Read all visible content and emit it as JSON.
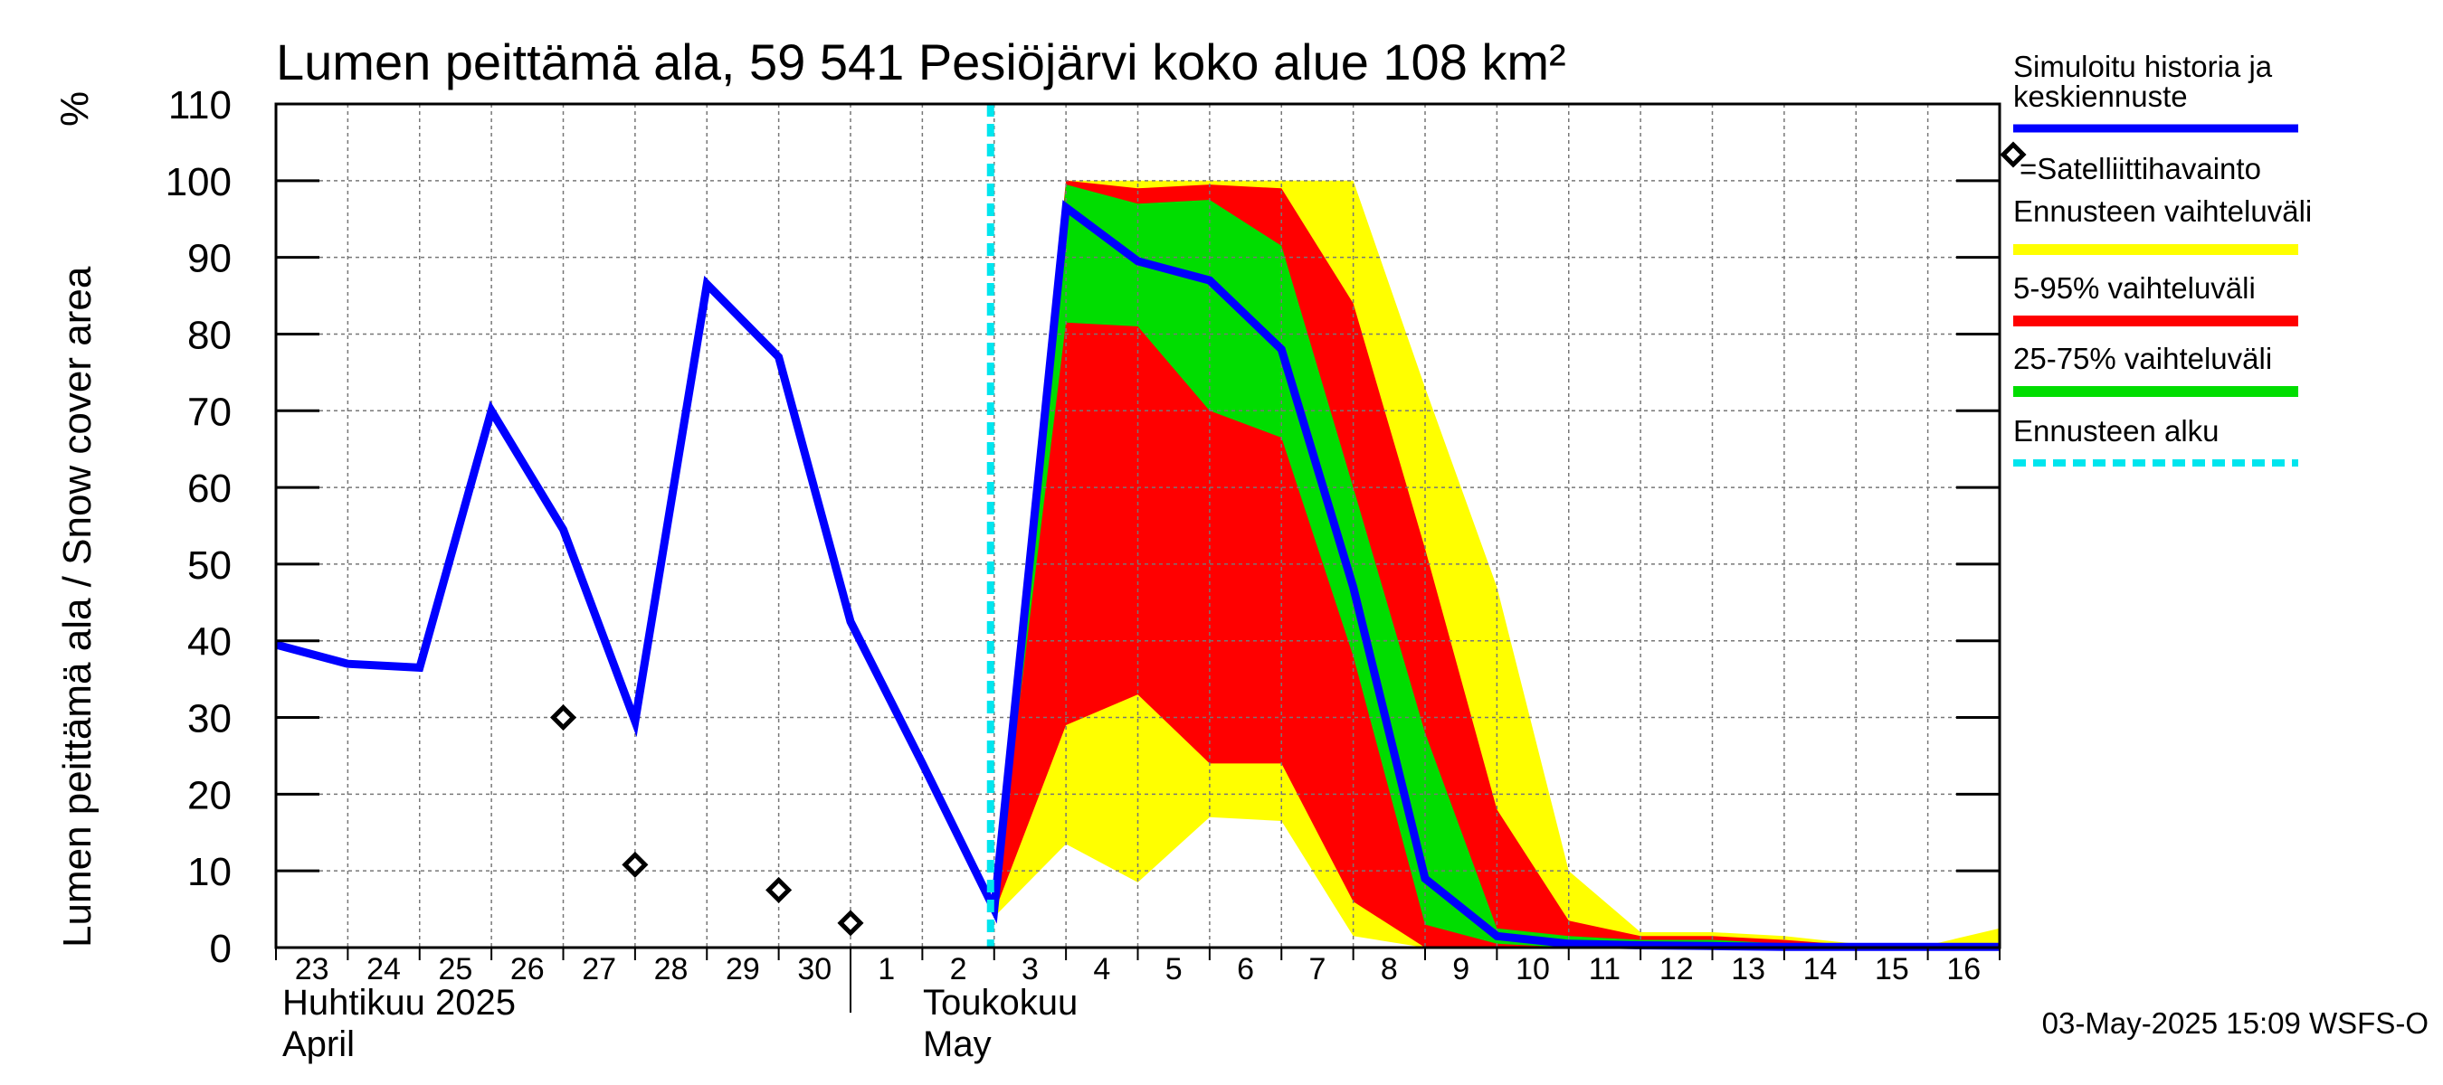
{
  "chart_data": {
    "type": "area",
    "title": "Lumen peittämä ala, 59 541 Pesiöjärvi koko alue 108 km²",
    "ylabel": "Lumen peittämä ala / Snow cover area",
    "yunit": "%",
    "ylim": [
      0,
      110
    ],
    "yticks": [
      0,
      10,
      20,
      30,
      40,
      50,
      60,
      70,
      80,
      90,
      100,
      110
    ],
    "xlim": [
      "2025-04-23",
      "2025-05-17"
    ],
    "x_tick_labels": [
      "23",
      "24",
      "25",
      "26",
      "27",
      "28",
      "29",
      "30",
      "1",
      "2",
      "3",
      "4",
      "5",
      "6",
      "7",
      "8",
      "9",
      "10",
      "11",
      "12",
      "13",
      "14",
      "15",
      "16"
    ],
    "month_labels": [
      {
        "fi": "Huhtikuu  2025",
        "en": "April"
      },
      {
        "fi": "Toukokuu",
        "en": "May"
      }
    ],
    "forecast_start": "2025-05-03",
    "grid": true,
    "legend_position": "right",
    "series": [
      {
        "name": "Simuloitu historia ja keskiennuste",
        "role": "history_and_median",
        "color": "#0000ff",
        "x": [
          "2025-04-23",
          "2025-04-24",
          "2025-04-25",
          "2025-04-26",
          "2025-04-27",
          "2025-04-28",
          "2025-04-29",
          "2025-04-30",
          "2025-05-01",
          "2025-05-02",
          "2025-05-03",
          "2025-05-04",
          "2025-05-05",
          "2025-05-06",
          "2025-05-07",
          "2025-05-08",
          "2025-05-09",
          "2025-05-10",
          "2025-05-11",
          "2025-05-12",
          "2025-05-13",
          "2025-05-14",
          "2025-05-15",
          "2025-05-16",
          "2025-05-17"
        ],
        "y": [
          39.5,
          37,
          36.5,
          70,
          54.5,
          29.5,
          86.5,
          77,
          42.5,
          24,
          5,
          96.5,
          89.5,
          87,
          78,
          47,
          9,
          1.5,
          0.5,
          0.3,
          0.2,
          0.1,
          0.1,
          0.1,
          0.1
        ]
      },
      {
        "name": "=Satelliittihavainto",
        "role": "satellite",
        "color": "#000000",
        "x": [
          "2025-04-27",
          "2025-04-28",
          "2025-04-30",
          "2025-05-01"
        ],
        "y": [
          30,
          10.8,
          7.5,
          3.2
        ]
      },
      {
        "name": "Ennusteen vaihteluväli",
        "role": "band_full",
        "color": "#ffff00",
        "x": [
          "2025-05-03",
          "2025-05-04",
          "2025-05-05",
          "2025-05-06",
          "2025-05-07",
          "2025-05-08",
          "2025-05-09",
          "2025-05-10",
          "2025-05-11",
          "2025-05-12",
          "2025-05-13",
          "2025-05-14",
          "2025-05-15",
          "2025-05-16",
          "2025-05-17"
        ],
        "upper": [
          6,
          100,
          100,
          100,
          100,
          100,
          73,
          47,
          10,
          2,
          2,
          1.5,
          0.5,
          0.3,
          2.5
        ],
        "lower": [
          4,
          13.5,
          8.5,
          17,
          16.5,
          1.5,
          0,
          0,
          0,
          0,
          0,
          0,
          0,
          0,
          0
        ]
      },
      {
        "name": "5-95% vaihteluväli",
        "role": "band_5_95",
        "color": "#ff0000",
        "x": [
          "2025-05-03",
          "2025-05-04",
          "2025-05-05",
          "2025-05-06",
          "2025-05-07",
          "2025-05-08",
          "2025-05-09",
          "2025-05-10",
          "2025-05-11",
          "2025-05-12",
          "2025-05-13",
          "2025-05-14",
          "2025-05-15",
          "2025-05-16",
          "2025-05-17"
        ],
        "upper": [
          6,
          100,
          99,
          99.5,
          99,
          84,
          52,
          18,
          3.5,
          1.5,
          1.5,
          1,
          0.3,
          0.2,
          0.2
        ],
        "lower": [
          4.5,
          29,
          33,
          24,
          24,
          6,
          0,
          0,
          0,
          0,
          0,
          0,
          0,
          0,
          0
        ]
      },
      {
        "name": "25-75% vaihteluväli",
        "role": "band_25_75",
        "color": "#00dd00",
        "x": [
          "2025-05-03",
          "2025-05-04",
          "2025-05-05",
          "2025-05-06",
          "2025-05-07",
          "2025-05-08",
          "2025-05-09",
          "2025-05-10",
          "2025-05-11",
          "2025-05-12",
          "2025-05-13",
          "2025-05-14",
          "2025-05-15",
          "2025-05-16",
          "2025-05-17"
        ],
        "upper": [
          5.5,
          99.5,
          97,
          97.5,
          91.5,
          60,
          28,
          2.5,
          1.5,
          1,
          1,
          0.5,
          0.2,
          0.1,
          0.1
        ],
        "lower": [
          5,
          81.5,
          81,
          70,
          66.5,
          38,
          3,
          0.5,
          0,
          0,
          0,
          0,
          0,
          0,
          0
        ]
      },
      {
        "name": "Ennusteen alku",
        "role": "forecast_start_line",
        "color": "#00e5ee"
      }
    ]
  },
  "footer": {
    "timestamp": "03-May-2025 15:09 WSFS-O"
  }
}
